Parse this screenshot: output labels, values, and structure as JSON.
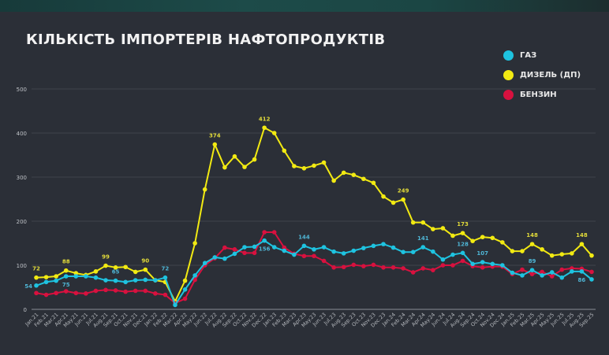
{
  "chart_data": {
    "type": "line",
    "title": "КІЛЬКІСТЬ ІМПОРТЕРІВ НАФТОПРОДУКТІВ",
    "xlabel": "",
    "ylabel": "",
    "ylim": [
      0,
      500
    ],
    "yticks": [
      "0",
      "100",
      "200",
      "300",
      "400",
      "500"
    ],
    "grid": true,
    "legend_position": "top-right",
    "categories": [
      "Jan.21",
      "Feb.21",
      "Mar.21",
      "Apr.21",
      "May.21",
      "Jun.21",
      "Jul.21",
      "Aug.21",
      "Sep.21",
      "Oct.21",
      "Nov.21",
      "Dec.21",
      "Jan.22",
      "Feb.22",
      "Mar.22",
      "Apr.22",
      "May.22",
      "Jun.22",
      "Jul.22",
      "Aug.22",
      "Sep.22",
      "Oct.22",
      "Nov.22",
      "Dec.22",
      "Jan.23",
      "Feb.23",
      "Mar.23",
      "Apr.23",
      "May.23",
      "Jun.23",
      "Jul.23",
      "Aug.23",
      "Sep.23",
      "Oct.23",
      "Nov.23",
      "Dec.23",
      "Jan.24",
      "Feb.24",
      "Mar.24",
      "Apr.24",
      "May.24",
      "Jun.24",
      "Jul.24",
      "Aug.24",
      "Sep.24",
      "Oct.24",
      "Nov.24",
      "Dec.24",
      "Jan.25",
      "Feb.25",
      "Mar.25",
      "Apr.25",
      "May.25",
      "Jun.25",
      "Jul.25",
      "Aug.25",
      "Sep.25"
    ],
    "series": [
      {
        "name": "ДИЗЕЛЬ (ДП)",
        "color": "#f2ea12",
        "values": [
          72,
          73,
          75,
          88,
          82,
          78,
          86,
          99,
          95,
          96,
          85,
          90,
          66,
          62,
          18,
          65,
          150,
          272,
          374,
          322,
          347,
          323,
          340,
          412,
          400,
          360,
          325,
          320,
          326,
          333,
          292,
          310,
          305,
          296,
          287,
          256,
          242,
          249,
          197,
          197,
          182,
          184,
          167,
          173,
          155,
          164,
          162,
          152,
          132,
          132,
          148,
          136,
          122,
          125,
          127,
          148,
          122
        ],
        "labels": [
          {
            "i": 0,
            "v": "72"
          },
          {
            "i": 3,
            "v": "88"
          },
          {
            "i": 7,
            "v": "99"
          },
          {
            "i": 11,
            "v": "90"
          },
          {
            "i": 18,
            "v": "374"
          },
          {
            "i": 23,
            "v": "412"
          },
          {
            "i": 37,
            "v": "249"
          },
          {
            "i": 43,
            "v": "173"
          },
          {
            "i": 50,
            "v": "148"
          },
          {
            "i": 55,
            "v": "148"
          }
        ]
      },
      {
        "name": "БЕНЗИН",
        "color": "#d8113f",
        "values": [
          37,
          33,
          37,
          41,
          37,
          36,
          42,
          44,
          43,
          40,
          42,
          42,
          36,
          33,
          14,
          24,
          67,
          100,
          116,
          140,
          136,
          128,
          128,
          175,
          175,
          140,
          126,
          121,
          121,
          110,
          95,
          96,
          101,
          98,
          101,
          95,
          95,
          93,
          84,
          93,
          89,
          100,
          100,
          110,
          98,
          95,
          97,
          97,
          80,
          90,
          80,
          85,
          75,
          90,
          93,
          92,
          85
        ],
        "labels": []
      },
      {
        "name": "ГАЗ",
        "color": "#1ec3e0",
        "values": [
          54,
          62,
          65,
          75,
          75,
          75,
          72,
          66,
          65,
          62,
          66,
          67,
          66,
          72,
          10,
          45,
          77,
          105,
          118,
          115,
          126,
          141,
          142,
          156,
          141,
          133,
          124,
          144,
          136,
          141,
          131,
          127,
          133,
          139,
          144,
          148,
          140,
          130,
          130,
          141,
          131,
          113,
          124,
          128,
          103,
          107,
          103,
          100,
          83,
          77,
          89,
          77,
          84,
          72,
          86,
          86,
          68
        ],
        "labels": [
          {
            "i": 0,
            "v": "54",
            "pos": "left"
          },
          {
            "i": 3,
            "v": "75",
            "pos": "below"
          },
          {
            "i": 8,
            "v": "65"
          },
          {
            "i": 13,
            "v": "72"
          },
          {
            "i": 23,
            "v": "156",
            "pos": "below"
          },
          {
            "i": 27,
            "v": "144"
          },
          {
            "i": 39,
            "v": "141"
          },
          {
            "i": 43,
            "v": "128"
          },
          {
            "i": 45,
            "v": "107"
          },
          {
            "i": 50,
            "v": "89"
          },
          {
            "i": 55,
            "v": "86",
            "pos": "below"
          }
        ]
      }
    ]
  }
}
